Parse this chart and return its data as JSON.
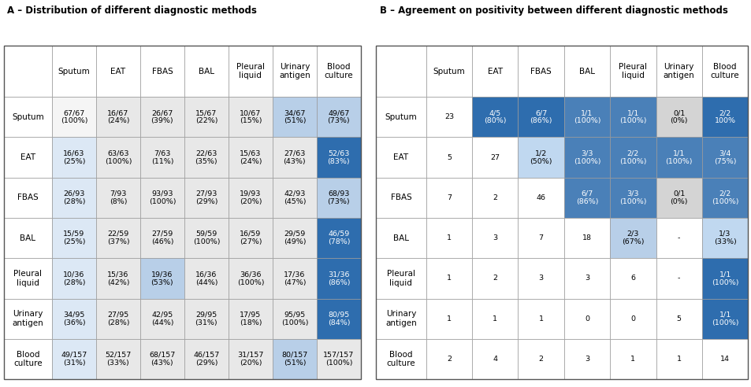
{
  "title_a": "A – Distribution of different diagnostic methods",
  "title_b": "B – Agreement on positivity between different diagnostic methods",
  "col_headers": [
    "Sputum",
    "EAT",
    "FBAS",
    "BAL",
    "Pleural\nliquid",
    "Urinary\nantigen",
    "Blood\nculture"
  ],
  "row_headers": [
    "Sputum",
    "EAT",
    "FBAS",
    "BAL",
    "Pleural\nliquid",
    "Urinary\nantigen",
    "Blood\nculture"
  ],
  "table_a": [
    [
      "67/67\n(100%)",
      "16/67\n(24%)",
      "26/67\n(39%)",
      "15/67\n(22%)",
      "10/67\n(15%)",
      "34/67\n(51%)",
      "49/67\n(73%)"
    ],
    [
      "16/63\n(25%)",
      "63/63\n(100%)",
      "7/63\n(11%)",
      "22/63\n(35%)",
      "15/63\n(24%)",
      "27/63\n(43%)",
      "52/63\n(83%)"
    ],
    [
      "26/93\n(28%)",
      "7/93\n(8%)",
      "93/93\n(100%)",
      "27/93\n(29%)",
      "19/93\n(20%)",
      "42/93\n(45%)",
      "68/93\n(73%)"
    ],
    [
      "15/59\n(25%)",
      "22/59\n(37%)",
      "27/59\n(46%)",
      "59/59\n(100%)",
      "16/59\n(27%)",
      "29/59\n(49%)",
      "46/59\n(78%)"
    ],
    [
      "10/36\n(28%)",
      "15/36\n(42%)",
      "19/36\n(53%)",
      "16/36\n(44%)",
      "36/36\n(100%)",
      "17/36\n(47%)",
      "31/36\n(86%)"
    ],
    [
      "34/95\n(36%)",
      "27/95\n(28%)",
      "42/95\n(44%)",
      "29/95\n(31%)",
      "17/95\n(18%)",
      "95/95\n(100%)",
      "80/95\n(84%)"
    ],
    [
      "49/157\n(31%)",
      "52/157\n(33%)",
      "68/157\n(43%)",
      "46/157\n(29%)",
      "31/157\n(20%)",
      "80/157\n(51%)",
      "157/157\n(100%)"
    ]
  ],
  "table_a_colors": [
    [
      "#f5f5f5",
      "#e8e8e8",
      "#e8e8e8",
      "#e8e8e8",
      "#e8e8e8",
      "#b8cfe8",
      "#b8cfe8"
    ],
    [
      "#dce8f5",
      "#e8e8e8",
      "#e8e8e8",
      "#e8e8e8",
      "#e8e8e8",
      "#e8e8e8",
      "#2e6dae"
    ],
    [
      "#dce8f5",
      "#e8e8e8",
      "#e8e8e8",
      "#e8e8e8",
      "#e8e8e8",
      "#e8e8e8",
      "#b8cfe8"
    ],
    [
      "#dce8f5",
      "#e8e8e8",
      "#e8e8e8",
      "#e8e8e8",
      "#e8e8e8",
      "#e8e8e8",
      "#2e6dae"
    ],
    [
      "#dce8f5",
      "#e8e8e8",
      "#b8cfe8",
      "#e8e8e8",
      "#e8e8e8",
      "#e8e8e8",
      "#2e6dae"
    ],
    [
      "#dce8f5",
      "#e8e8e8",
      "#e8e8e8",
      "#e8e8e8",
      "#e8e8e8",
      "#e8e8e8",
      "#2e6dae"
    ],
    [
      "#dce8f5",
      "#e8e8e8",
      "#e8e8e8",
      "#e8e8e8",
      "#e8e8e8",
      "#b8cfe8",
      "#e8e8e8"
    ]
  ],
  "table_b": [
    [
      "23",
      "4/5\n(80%)",
      "6/7\n(86%)",
      "1/1\n(100%)",
      "1/1\n(100%)",
      "0/1\n(0%)",
      "2/2\n100%"
    ],
    [
      "5",
      "27",
      "1/2\n(50%)",
      "3/3\n(100%)",
      "2/2\n(100%)",
      "1/1\n(100%)",
      "3/4\n(75%)"
    ],
    [
      "7",
      "2",
      "46",
      "6/7\n(86%)",
      "3/3\n(100%)",
      "0/1\n(0%)",
      "2/2\n(100%)"
    ],
    [
      "1",
      "3",
      "7",
      "18",
      "2/3\n(67%)",
      "-",
      "1/3\n(33%)"
    ],
    [
      "1",
      "2",
      "3",
      "3",
      "6",
      "-",
      "1/1\n(100%)"
    ],
    [
      "1",
      "1",
      "1",
      "0",
      "0",
      "5",
      "1/1\n(100%)"
    ],
    [
      "2",
      "4",
      "2",
      "3",
      "1",
      "1",
      "14"
    ]
  ],
  "table_b_colors": [
    [
      "#ffffff",
      "#2e6dae",
      "#2e6dae",
      "#4a80b8",
      "#4a80b8",
      "#d4d4d4",
      "#2e6dae"
    ],
    [
      "#ffffff",
      "#ffffff",
      "#c0d8f0",
      "#4a80b8",
      "#4a80b8",
      "#4a80b8",
      "#4a80b8"
    ],
    [
      "#ffffff",
      "#ffffff",
      "#ffffff",
      "#4a80b8",
      "#4a80b8",
      "#d4d4d4",
      "#4a80b8"
    ],
    [
      "#ffffff",
      "#ffffff",
      "#ffffff",
      "#ffffff",
      "#b8cfe8",
      "#ffffff",
      "#c0d8f0"
    ],
    [
      "#ffffff",
      "#ffffff",
      "#ffffff",
      "#ffffff",
      "#ffffff",
      "#ffffff",
      "#2e6dae"
    ],
    [
      "#ffffff",
      "#ffffff",
      "#ffffff",
      "#ffffff",
      "#ffffff",
      "#ffffff",
      "#2e6dae"
    ],
    [
      "#ffffff",
      "#ffffff",
      "#ffffff",
      "#ffffff",
      "#ffffff",
      "#ffffff",
      "#ffffff"
    ]
  ],
  "background_color": "#ffffff",
  "border_color": "#999999",
  "font_size_title": 8.5,
  "font_size_cell": 6.8,
  "font_size_header": 7.5
}
